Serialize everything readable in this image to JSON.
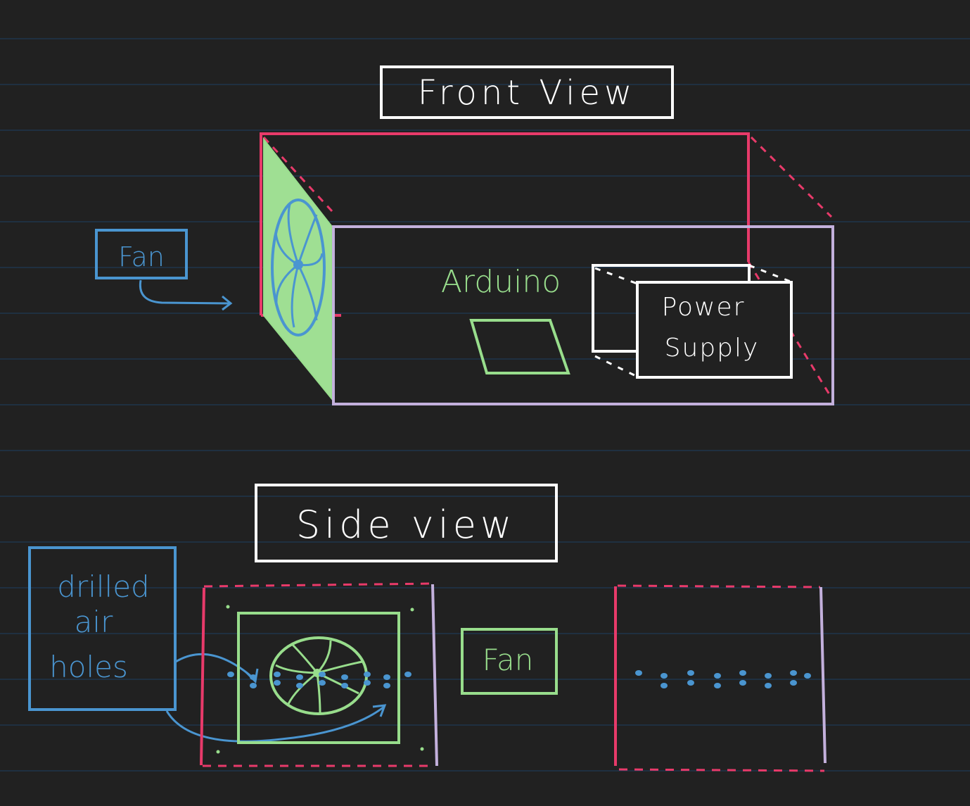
{
  "colors": {
    "background": "#212121",
    "ruled_line": "#1f3a55",
    "red": "#e83a6a",
    "purple": "#c3b0dc",
    "green": "#98dd8c",
    "green_fill": "#9fdf93",
    "blue": "#4a95d0",
    "white": "#ffffff"
  },
  "front_view": {
    "title": "Front View",
    "fan_label": "Fan",
    "arduino_label": "Arduino",
    "power_supply_line1": "Power",
    "power_supply_line2": "Supply"
  },
  "side_view": {
    "title": "Side view",
    "air_holes_line1": "drilled",
    "air_holes_line2": "air",
    "air_holes_line3": "holes",
    "fan_label": "Fan"
  }
}
